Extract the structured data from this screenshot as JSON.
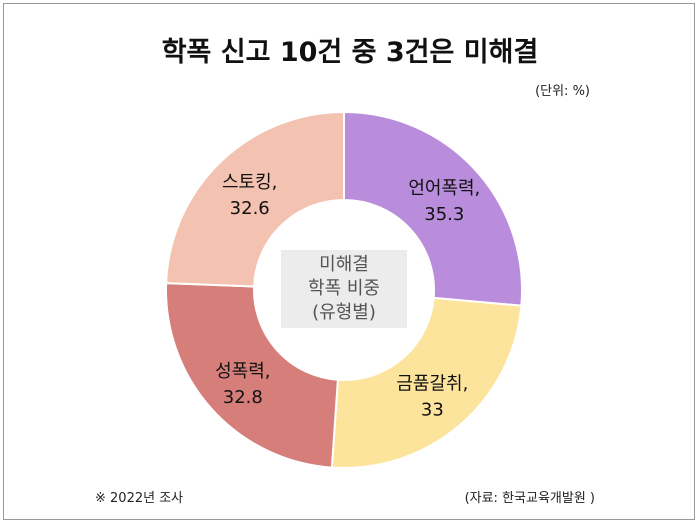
{
  "title": "학폭 신고 10건 중 3건은 미해결",
  "unit_label": "(단위: %)",
  "center_label": [
    "미해결",
    "학폭 비중",
    "(유형별)"
  ],
  "footnote": "※ 2022년 조사",
  "source": "(자료: 한국교육개발원 )",
  "chart_data": {
    "type": "pie",
    "title": "학폭 신고 10건 중 3건은 미해결",
    "unit": "%",
    "categories": [
      "언어폭력",
      "금품갈취",
      "성폭력",
      "스토킹"
    ],
    "values": [
      35.3,
      33,
      32.8,
      32.6
    ],
    "colors": [
      "#b98ddc",
      "#fde49c",
      "#d67e79",
      "#f3c2b0"
    ]
  }
}
